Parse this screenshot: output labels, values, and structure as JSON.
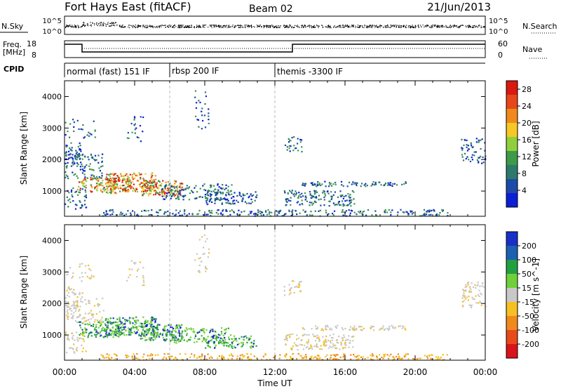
{
  "header": {
    "title": "Fort Hays East (fitACF)",
    "beam": "Beam 02",
    "date": "21/Jun/2013"
  },
  "nsky_panel": {
    "left_label": "N.Sky",
    "right_label": "N.Search",
    "left_ticks": [
      "10^5",
      "10^0"
    ],
    "right_ticks": [
      "10^5",
      "10^0"
    ]
  },
  "freq_panel": {
    "left_label_1": "Freq.",
    "left_label_2": "[MHz]",
    "right_label": "Nave",
    "left_ticks": [
      "18",
      "8"
    ],
    "right_ticks": [
      "60",
      "0"
    ]
  },
  "cpid_panel": {
    "label": "CPID",
    "modes": [
      {
        "start_h": 0,
        "name": "normal (fast) 151 IF"
      },
      {
        "start_h": 6,
        "name": "rbsp 200 IF"
      },
      {
        "start_h": 12,
        "name": "themis -3300 IF"
      }
    ]
  },
  "chart_data": [
    {
      "type": "heatmap",
      "name": "power",
      "ylabel": "Slant Range [km]",
      "yticks": [
        "1000",
        "2000",
        "3000",
        "4000"
      ],
      "ylim": [
        200,
        4500
      ],
      "xlim": [
        0,
        24
      ],
      "colorbar": {
        "label": "Power [dB]",
        "ticks": [
          "4",
          "8",
          "12",
          "16",
          "20",
          "24",
          "28"
        ],
        "range": [
          0,
          30
        ],
        "colors": [
          "#0a1fd6",
          "#1c4aa8",
          "#2e7a6a",
          "#3d9a4a",
          "#8fcf3c",
          "#f6c823",
          "#f08a1d",
          "#e8461a",
          "#d81a12"
        ]
      }
    },
    {
      "type": "heatmap",
      "name": "velocity",
      "ylabel": "Slant Range [km]",
      "yticks": [
        "1000",
        "2000",
        "3000",
        "4000"
      ],
      "ylim": [
        200,
        4500
      ],
      "xlim": [
        0,
        24
      ],
      "colorbar": {
        "label": "Velocity [m s^-1]",
        "ticks": [
          "200",
          "100",
          "50",
          "15",
          "-15",
          "-50",
          "-100",
          "-200"
        ],
        "range": [
          -250,
          250
        ],
        "colors": [
          "#1830c8",
          "#1e60b0",
          "#22a040",
          "#6fd03a",
          "#c8c8c8",
          "#f6c023",
          "#f08a1d",
          "#e84a1a",
          "#d8141a"
        ]
      }
    }
  ],
  "x_axis": {
    "label": "Time UT",
    "ticks": [
      "00:00",
      "04:00",
      "08:00",
      "12:00",
      "16:00",
      "20:00",
      "00:00"
    ]
  }
}
